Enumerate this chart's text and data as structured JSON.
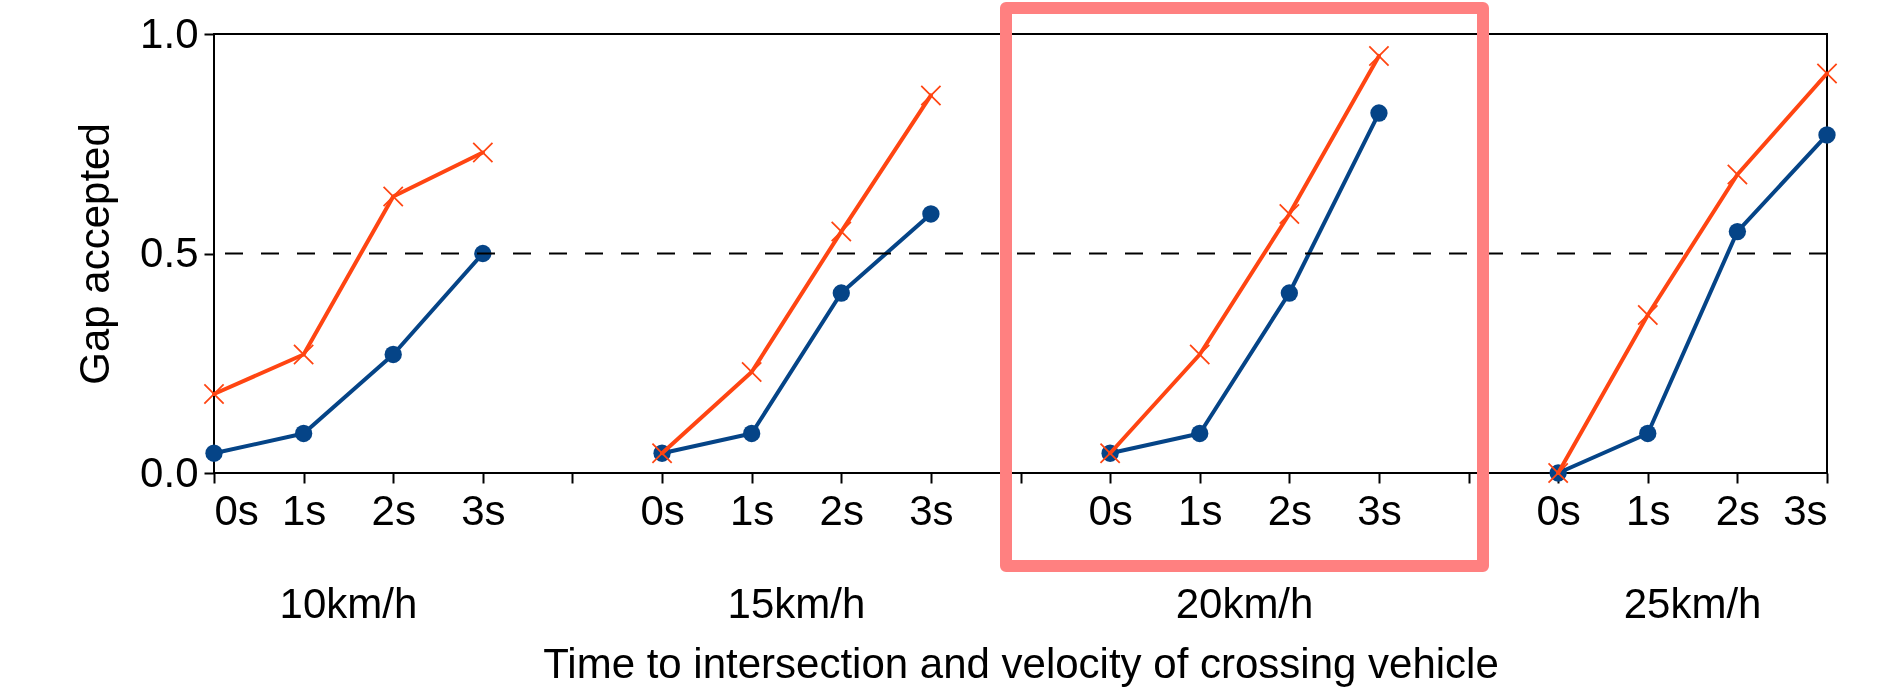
{
  "chart_data": {
    "type": "line",
    "xlabel": "Time to intersection and velocity of crossing vehicle",
    "ylabel": "Gap accepted",
    "categories": [
      "0s",
      "1s",
      "2s",
      "3s",
      null,
      "0s",
      "1s",
      "2s",
      "3s",
      null,
      "0s",
      "1s",
      "2s",
      "3s",
      null,
      "0s",
      "1s",
      "2s",
      "3s"
    ],
    "series": [
      {
        "color": "#ff4512",
        "marker": "cross",
        "values": [
          0.18,
          0.27,
          0.63,
          0.73,
          null,
          0.045,
          0.23,
          0.55,
          0.86,
          null,
          0.045,
          0.27,
          0.59,
          0.95,
          null,
          0.0,
          0.36,
          0.68,
          0.91
        ]
      },
      {
        "color": "#054487",
        "marker": "circle",
        "values": [
          0.045,
          0.09,
          0.27,
          0.5,
          null,
          0.045,
          0.09,
          0.41,
          0.59,
          null,
          0.045,
          0.09,
          0.41,
          0.82,
          null,
          0.0,
          0.09,
          0.55,
          0.77
        ]
      }
    ],
    "ylim": [
      0,
      1
    ],
    "yticks": [
      {
        "value": 0,
        "label": "0.0"
      },
      {
        "value": 0.5,
        "label": "0.5"
      },
      {
        "value": 1,
        "label": "1.0"
      }
    ],
    "ref_lines": [
      {
        "axis": "y",
        "value": 0.5,
        "color": "#000000",
        "line_style": "dashed"
      }
    ],
    "annotations": [
      "10km/h",
      "15km/h",
      "20km/h",
      "25km/h"
    ],
    "grid": false
  }
}
